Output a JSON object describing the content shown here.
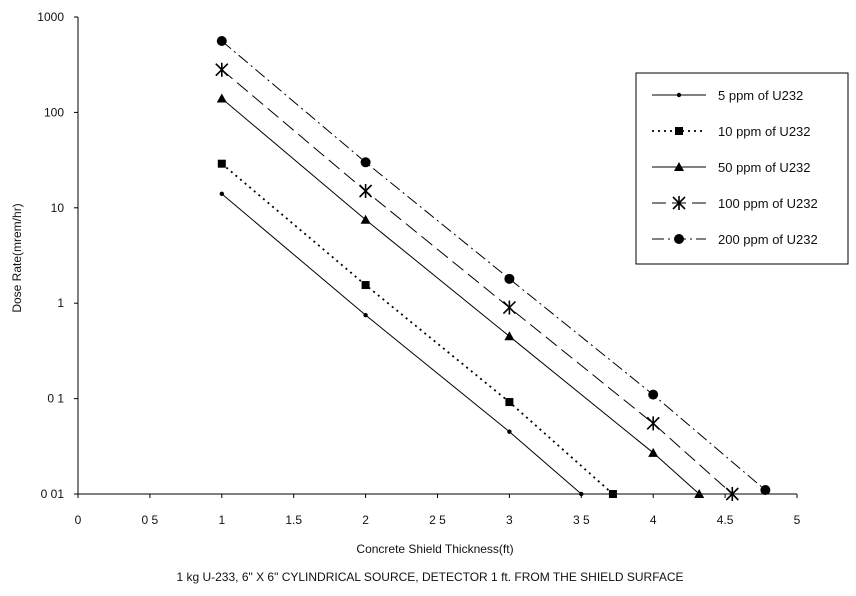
{
  "chart_data": {
    "type": "line",
    "title": "",
    "xlabel": "Concrete Shield Thickness(ft)",
    "ylabel": "Dose Rate(mrem/hr)",
    "caption": "1 kg U-233, 6\" X 6\" CYLINDRICAL SOURCE, DETECTOR 1 ft. FROM THE SHIELD SURFACE",
    "xlim": [
      0,
      5
    ],
    "ylim": [
      0.01,
      1000
    ],
    "yscale": "log",
    "grid": false,
    "legend_position": "right",
    "x_ticks": [
      {
        "v": 0,
        "label": "0"
      },
      {
        "v": 0.5,
        "label": "0 5"
      },
      {
        "v": 1,
        "label": "1"
      },
      {
        "v": 1.5,
        "label": "1.5"
      },
      {
        "v": 2,
        "label": "2"
      },
      {
        "v": 2.5,
        "label": "2 5"
      },
      {
        "v": 3,
        "label": "3"
      },
      {
        "v": 3.5,
        "label": "3 5"
      },
      {
        "v": 4,
        "label": "4"
      },
      {
        "v": 4.5,
        "label": "4.5"
      },
      {
        "v": 5,
        "label": "5"
      }
    ],
    "y_ticks": [
      {
        "v": 0.01,
        "label": "0 01"
      },
      {
        "v": 0.1,
        "label": "0 1"
      },
      {
        "v": 1,
        "label": "1"
      },
      {
        "v": 10,
        "label": "10"
      },
      {
        "v": 100,
        "label": "100"
      },
      {
        "v": 1000,
        "label": "1000"
      }
    ],
    "series": [
      {
        "name": "5 ppm of U232",
        "marker": "dot",
        "dash": "solid",
        "x": [
          1,
          2,
          3,
          3.5
        ],
        "y": [
          14,
          0.75,
          0.045,
          0.01
        ]
      },
      {
        "name": "10 ppm of U232",
        "marker": "square",
        "dash": "dotted",
        "x": [
          1,
          2,
          3,
          3.72
        ],
        "y": [
          29,
          1.55,
          0.092,
          0.01
        ]
      },
      {
        "name": "50 ppm of U232",
        "marker": "triangle",
        "dash": "solid",
        "x": [
          1,
          2,
          3,
          4,
          4.32
        ],
        "y": [
          140,
          7.5,
          0.45,
          0.027,
          0.01
        ]
      },
      {
        "name": "100 ppm of U232",
        "marker": "star",
        "dash": "longdash",
        "x": [
          1,
          2,
          3,
          4,
          4.55
        ],
        "y": [
          280,
          15,
          0.9,
          0.055,
          0.01
        ]
      },
      {
        "name": "200 ppm of U232",
        "marker": "circle",
        "dash": "dashdot",
        "x": [
          1,
          2,
          3,
          4,
          4.78
        ],
        "y": [
          560,
          30,
          1.8,
          0.11,
          0.011
        ]
      }
    ]
  }
}
